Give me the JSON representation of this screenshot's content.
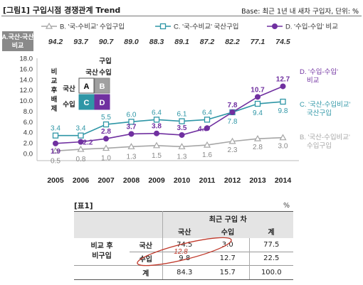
{
  "figure": {
    "title": "[그림1] 구입시점 경쟁관계 Trend",
    "base_note": "Base: 최근 1년 내 새차 구입자, 단위: %"
  },
  "chart_data": {
    "type": "line",
    "x": [
      "2005",
      "2006",
      "2007",
      "2008",
      "2009",
      "2010",
      "2011",
      "2012",
      "2013",
      "2014"
    ],
    "ylim": [
      0,
      18
    ],
    "yticks": [
      "0.0",
      "2.0",
      "4.0",
      "6.0",
      "8.0",
      "10.0",
      "12.0",
      "14.0",
      "16.0",
      "18.0"
    ],
    "legend": [
      "B. '국-수비교' 수입구입",
      "C. '국-수비교' 국산구입",
      "D. '수입-수입' 비교"
    ],
    "series_a": {
      "label": "A.국산-국산\n비교",
      "values": [
        "94.2",
        "93.7",
        "90.7",
        "89.0",
        "88.3",
        "89.1",
        "87.2",
        "82.2",
        "77.1",
        "74.5"
      ]
    },
    "series": [
      {
        "key": "B",
        "color": "#a6a6a6",
        "marker": "triangle",
        "end_label": [
          "B. '국산-수입비교'",
          "수입구입"
        ],
        "values": [
          0.5,
          0.8,
          1.0,
          1.3,
          1.5,
          1.3,
          1.6,
          2.3,
          2.8,
          3.0
        ],
        "labels": [
          "0.5",
          "0.8",
          "1.0",
          "1.3",
          "1.5",
          "1.3",
          "1.6",
          "2.3",
          "2.8",
          "3.0"
        ]
      },
      {
        "key": "C",
        "color": "#2e96a6",
        "marker": "square",
        "end_label": [
          "C. '국산-수입비교'",
          "국산구입"
        ],
        "values": [
          3.4,
          3.4,
          5.5,
          6.0,
          6.4,
          6.1,
          6.4,
          7.8,
          9.4,
          9.8
        ],
        "labels": [
          "3.4",
          "3.4",
          "5.5",
          "6.0",
          "6.4",
          "6.1",
          "6.4",
          "7.8",
          "9.4",
          "9.8"
        ]
      },
      {
        "key": "D",
        "color": "#7030a0",
        "marker": "circle",
        "end_label": [
          "D. '수입-수입'",
          "비교"
        ],
        "values": [
          1.9,
          2.2,
          2.8,
          3.7,
          3.8,
          3.5,
          4.8,
          7.8,
          10.7,
          12.7
        ],
        "labels": [
          "1.9",
          "2.2",
          "2.8",
          "3.7",
          "3.8",
          "3.5",
          "4.8",
          "7.8",
          "10.7",
          "12.7"
        ]
      }
    ],
    "inset": {
      "top_label": "구입",
      "col_labels": [
        "국산",
        "수입"
      ],
      "row_title": "비교후배제",
      "row_labels": [
        "국산",
        "수입"
      ],
      "cells": [
        "A",
        "B",
        "C",
        "D"
      ]
    }
  },
  "table": {
    "title": "[표1]",
    "unit": "%",
    "group_header": "최근 구입 차",
    "col_headers": [
      "국산",
      "수입",
      "계"
    ],
    "row_group_label": "비교 후\n비구입",
    "rows": [
      {
        "label": "국산",
        "values": [
          "74.5",
          "3.0",
          "77.5"
        ]
      },
      {
        "label": "수입",
        "values": [
          "9.8",
          "12.7",
          "22.5"
        ]
      },
      {
        "label": "계",
        "values": [
          "84.3",
          "15.7",
          "100.0"
        ]
      }
    ],
    "annotation": "12.8"
  }
}
